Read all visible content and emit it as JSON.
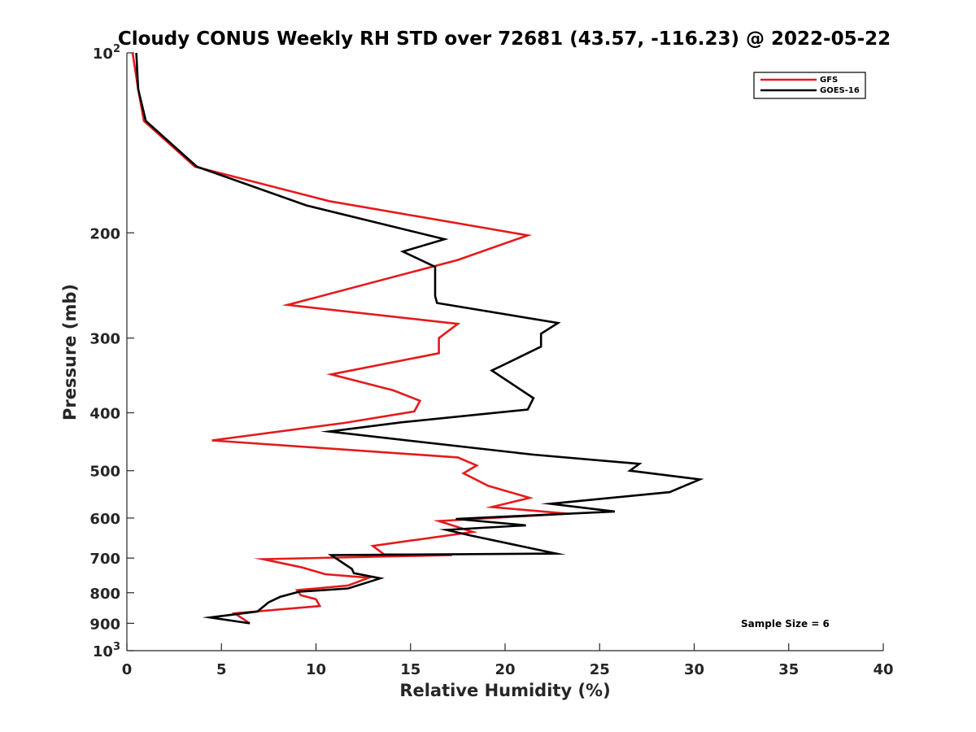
{
  "chart_data": {
    "type": "line",
    "title": "Cloudy CONUS Weekly RH STD over 72681 (43.57, -116.23) @ 2022-05-22",
    "xlabel": "Relative Humidity (%)",
    "ylabel": "Pressure (mb)",
    "xlim": [
      0,
      40
    ],
    "ylim": [
      100,
      1000
    ],
    "yscale": "log",
    "yaxis_reversed": true,
    "grid": false,
    "legend_position": "top-right",
    "x_ticks": [
      0,
      5,
      10,
      15,
      20,
      25,
      30,
      35,
      40
    ],
    "x_tick_labels": [
      "0",
      "5",
      "10",
      "15",
      "20",
      "25",
      "30",
      "35",
      "40"
    ],
    "y_ticks": [
      100,
      200,
      300,
      400,
      500,
      600,
      700,
      800,
      900,
      1000
    ],
    "y_tick_labels": [
      {
        "base": "10",
        "exp": "2"
      },
      {
        "base": "200",
        "exp": ""
      },
      {
        "base": "300",
        "exp": ""
      },
      {
        "base": "400",
        "exp": ""
      },
      {
        "base": "500",
        "exp": ""
      },
      {
        "base": "600",
        "exp": ""
      },
      {
        "base": "700",
        "exp": ""
      },
      {
        "base": "800",
        "exp": ""
      },
      {
        "base": "900",
        "exp": ""
      },
      {
        "base": "10",
        "exp": "3"
      }
    ],
    "annotation": "Sample Size = 6",
    "series": [
      {
        "name": "GFS",
        "color": "#e41a1c",
        "points": [
          [
            0.3,
            100
          ],
          [
            0.6,
            115
          ],
          [
            0.9,
            130
          ],
          [
            3.6,
            155
          ],
          [
            10.7,
            177
          ],
          [
            21.2,
            202
          ],
          [
            17.5,
            222
          ],
          [
            8.5,
            264
          ],
          [
            17.5,
            284
          ],
          [
            16.5,
            300
          ],
          [
            16.5,
            318
          ],
          [
            10.8,
            345
          ],
          [
            14.1,
            367
          ],
          [
            15.5,
            382
          ],
          [
            15.2,
            398
          ],
          [
            11.5,
            416
          ],
          [
            4.5,
            445
          ],
          [
            17.5,
            475
          ],
          [
            18.5,
            490
          ],
          [
            17.8,
            505
          ],
          [
            19.1,
            530
          ],
          [
            21.3,
            555
          ],
          [
            19.3,
            575
          ],
          [
            23.3,
            590
          ],
          [
            16.5,
            607
          ],
          [
            18.3,
            633
          ],
          [
            13.0,
            668
          ],
          [
            13.6,
            690
          ],
          [
            17.2,
            692
          ],
          [
            7.2,
            703
          ],
          [
            9.2,
            725
          ],
          [
            10.5,
            745
          ],
          [
            12.8,
            755
          ],
          [
            11.7,
            778
          ],
          [
            9.0,
            792
          ],
          [
            9.2,
            808
          ],
          [
            10.0,
            820
          ],
          [
            10.2,
            842
          ],
          [
            5.7,
            866
          ],
          [
            6.5,
            900
          ]
        ]
      },
      {
        "name": "GOES-16",
        "color": "#000000",
        "points": [
          [
            0.5,
            100
          ],
          [
            0.6,
            115
          ],
          [
            1.0,
            130
          ],
          [
            3.7,
            155
          ],
          [
            9.5,
            180
          ],
          [
            16.8,
            205
          ],
          [
            14.6,
            215
          ],
          [
            16.3,
            228
          ],
          [
            16.3,
            255
          ],
          [
            16.4,
            262
          ],
          [
            22.8,
            283
          ],
          [
            21.9,
            295
          ],
          [
            21.9,
            310
          ],
          [
            19.3,
            340
          ],
          [
            21.5,
            378
          ],
          [
            21.2,
            395
          ],
          [
            14.5,
            415
          ],
          [
            10.7,
            430
          ],
          [
            21.5,
            470
          ],
          [
            27.1,
            487
          ],
          [
            26.6,
            500
          ],
          [
            30.3,
            517
          ],
          [
            28.7,
            543
          ],
          [
            22.4,
            568
          ],
          [
            25.8,
            585
          ],
          [
            17.4,
            602
          ],
          [
            21.1,
            617
          ],
          [
            16.9,
            628
          ],
          [
            18.2,
            642
          ],
          [
            22.7,
            688
          ],
          [
            10.8,
            692
          ],
          [
            11.9,
            730
          ],
          [
            12.0,
            742
          ],
          [
            13.4,
            757
          ],
          [
            11.7,
            787
          ],
          [
            9.1,
            797
          ],
          [
            8.1,
            813
          ],
          [
            7.5,
            830
          ],
          [
            6.9,
            860
          ],
          [
            4.4,
            880
          ],
          [
            6.5,
            900
          ]
        ]
      }
    ]
  }
}
